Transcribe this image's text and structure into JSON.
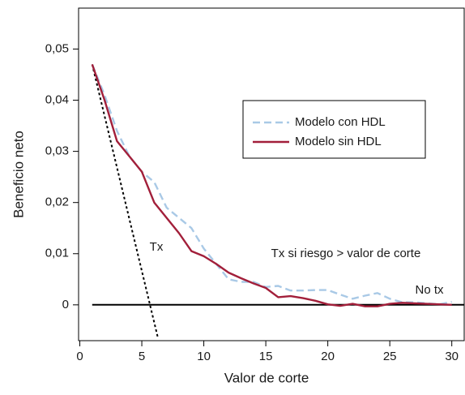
{
  "chart_data": {
    "type": "line",
    "x_label": "Valor de corte",
    "y_label": "Beneficio neto",
    "xlim": [
      -0.1,
      31
    ],
    "xticks": [
      0,
      5,
      10,
      15,
      20,
      25,
      30
    ],
    "ylim": [
      -0.007,
      0.058
    ],
    "yticks": [
      0,
      {
        "value": 0.01,
        "label": "0,01"
      },
      {
        "value": 0.02,
        "label": "0,02"
      },
      {
        "value": 0.03,
        "label": "0,03"
      },
      {
        "value": 0.04,
        "label": "0,04"
      },
      {
        "value": 0.05,
        "label": "0,05"
      }
    ],
    "x": [
      1,
      2,
      3,
      4,
      5,
      6,
      7,
      8,
      9,
      10,
      11,
      12,
      13,
      14,
      15,
      16,
      17,
      18,
      19,
      20,
      21,
      22,
      23,
      24,
      25,
      26,
      27,
      28,
      29,
      30
    ],
    "series": [
      {
        "name": "Modelo con HDL",
        "color": "#a9c9e6",
        "dash": "dashed",
        "values": [
          0.047,
          0.041,
          0.034,
          0.029,
          0.026,
          0.024,
          0.019,
          0.017,
          0.015,
          0.011,
          0.008,
          0.005,
          0.0045,
          0.0045,
          0.0035,
          0.0037,
          0.0028,
          0.0028,
          0.0029,
          0.0029,
          0.002,
          0.0012,
          0.0018,
          0.0023,
          0.0012,
          0.0005,
          0.0005,
          0.0003,
          0.0001,
          0.0006
        ]
      },
      {
        "name": "Modelo sin HDL",
        "color": "#a21f3a",
        "dash": "solid",
        "values": [
          0.047,
          0.04,
          0.032,
          0.029,
          0.026,
          0.02,
          0.017,
          0.014,
          0.0105,
          0.0095,
          0.008,
          0.0063,
          0.0052,
          0.0042,
          0.0033,
          0.0015,
          0.0017,
          0.0013,
          0.0008,
          0.0001,
          -0.0002,
          0.0002,
          -0.0003,
          -0.0003,
          0.0002,
          0.0004,
          0.0003,
          0.0002,
          0.0001,
          0.0
        ]
      }
    ],
    "reference_lines": [
      {
        "label": "Tx",
        "color": "#000000",
        "dash": "dotted",
        "x": [
          1,
          6.3
        ],
        "values": [
          0.047,
          -0.0065
        ]
      },
      {
        "label": "No tx",
        "color": "#000000",
        "dash": "solid",
        "x": [
          1,
          31
        ],
        "values": [
          0,
          0
        ]
      }
    ],
    "annotation": "Tx si riesgo > valor de corte"
  }
}
